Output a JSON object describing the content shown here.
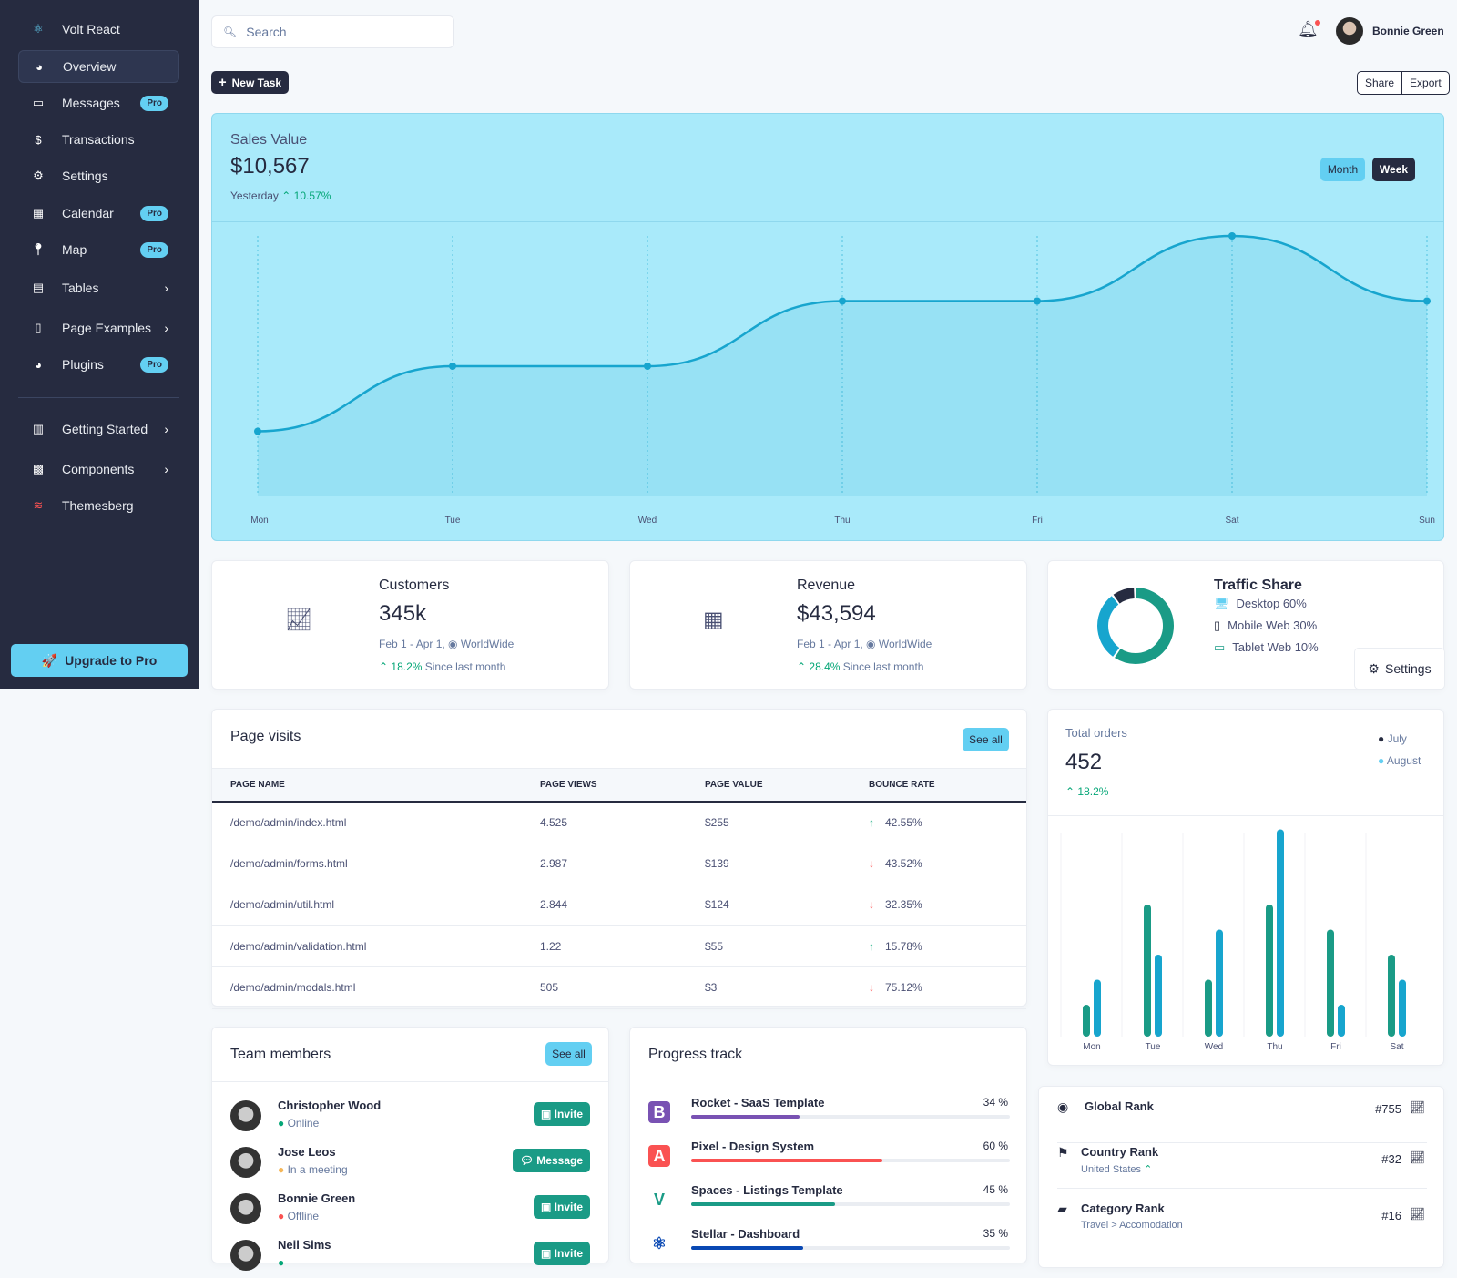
{
  "brand": "Volt React",
  "sidebar": {
    "items": [
      {
        "label": "Overview",
        "icon": "chart-pie-icon",
        "active": true
      },
      {
        "label": "Messages",
        "icon": "inbox-icon",
        "badge": "Pro"
      },
      {
        "label": "Transactions",
        "icon": "hand-holding-usd-icon"
      },
      {
        "label": "Settings",
        "icon": "cog-icon"
      },
      {
        "label": "Calendar",
        "icon": "calendar-icon",
        "badge": "Pro"
      },
      {
        "label": "Map",
        "icon": "map-pin-icon",
        "badge": "Pro"
      },
      {
        "label": "Tables",
        "icon": "table-icon",
        "chevron": true
      },
      {
        "label": "Page Examples",
        "icon": "file-icon",
        "chevron": true
      },
      {
        "label": "Plugins",
        "icon": "chart-pie-icon",
        "badge": "Pro"
      },
      {
        "label": "Getting Started",
        "icon": "book-icon",
        "chevron": true
      },
      {
        "label": "Components",
        "icon": "boxes-icon",
        "chevron": true
      },
      {
        "label": "Themesberg",
        "icon": "themesberg-logo-icon"
      }
    ],
    "upgrade": "Upgrade to Pro"
  },
  "topbar": {
    "search_placeholder": "Search",
    "user_name": "Bonnie Green"
  },
  "toolbar": {
    "new_task": "New Task",
    "share": "Share",
    "export": "Export"
  },
  "sales": {
    "title": "Sales Value",
    "value": "$10,567",
    "period": "Yesterday",
    "change": "10.57%",
    "month": "Month",
    "week": "Week"
  },
  "chart_data": [
    {
      "type": "area",
      "x": [
        "Mon",
        "Tue",
        "Wed",
        "Thu",
        "Fri",
        "Sat",
        "Sun"
      ],
      "values": [
        1,
        2,
        2,
        3,
        3,
        4,
        3
      ],
      "ylim": [
        0,
        4
      ],
      "grid": "vertical",
      "color": "#17a5ce"
    },
    {
      "type": "bar",
      "categories": [
        "Mon",
        "Tue",
        "Wed",
        "Thu",
        "Fri",
        "Sat"
      ],
      "series": [
        {
          "name": "July",
          "values": [
            1,
            5,
            2,
            5,
            4,
            3
          ],
          "color": "#1a9b86"
        },
        {
          "name": "August",
          "values": [
            2,
            3,
            4,
            8,
            1,
            2
          ],
          "color": "#17a5ce"
        }
      ],
      "legend": "top-right",
      "ylim": [
        0,
        8
      ]
    },
    {
      "type": "pie",
      "donut": true,
      "categories": [
        "Desktop",
        "Mobile Web",
        "Tablet Web"
      ],
      "values": [
        60,
        30,
        10
      ],
      "colors": [
        "#1a9b86",
        "#17a5ce",
        "#262b40"
      ]
    }
  ],
  "stats": [
    {
      "title": "Customers",
      "value": "345k",
      "range": "Feb 1 - Apr 1,",
      "region": "WorldWide",
      "change": "18.2%",
      "since": "Since last month",
      "icon": "chart-line-icon"
    },
    {
      "title": "Revenue",
      "value": "$43,594",
      "range": "Feb 1 - Apr 1,",
      "region": "WorldWide",
      "change": "28.4%",
      "since": "Since last month",
      "icon": "cash-register-icon"
    }
  ],
  "traffic": {
    "title": "Traffic Share",
    "items": [
      {
        "label": "Desktop 60%",
        "icon": "desktop-icon",
        "color": "#63cff2"
      },
      {
        "label": "Mobile Web 30%",
        "icon": "mobile-icon",
        "color": "#262b40"
      },
      {
        "label": "Tablet Web 10%",
        "icon": "tablet-icon",
        "color": "#1a9b86"
      }
    ],
    "settings": "Settings"
  },
  "page_visits": {
    "title": "Page visits",
    "see_all": "See all",
    "columns": [
      "PAGE NAME",
      "PAGE VIEWS",
      "PAGE VALUE",
      "BOUNCE RATE"
    ],
    "rows": [
      {
        "name": "/demo/admin/index.html",
        "views": "4.525",
        "value": "$255",
        "rate": "42.55%",
        "dir": "up"
      },
      {
        "name": "/demo/admin/forms.html",
        "views": "2.987",
        "value": "$139",
        "rate": "43.52%",
        "dir": "down"
      },
      {
        "name": "/demo/admin/util.html",
        "views": "2.844",
        "value": "$124",
        "rate": "32.35%",
        "dir": "down"
      },
      {
        "name": "/demo/admin/validation.html",
        "views": "1.22",
        "value": "$55",
        "rate": "15.78%",
        "dir": "up"
      },
      {
        "name": "/demo/admin/modals.html",
        "views": "505",
        "value": "$3",
        "rate": "75.12%",
        "dir": "down"
      }
    ]
  },
  "orders": {
    "title": "Total orders",
    "value": "452",
    "change": "18.2%",
    "legend": [
      "July",
      "August"
    ]
  },
  "team": {
    "title": "Team members",
    "see_all": "See all",
    "members": [
      {
        "name": "Christopher Wood",
        "status": "Online",
        "status_color": "#05a677",
        "action": "Invite"
      },
      {
        "name": "Jose Leos",
        "status": "In a meeting",
        "status_color": "#f5b759",
        "action": "Message"
      },
      {
        "name": "Bonnie Green",
        "status": "Offline",
        "status_color": "#fa5252",
        "action": "Invite"
      },
      {
        "name": "Neil Sims",
        "status": "",
        "status_color": "#05a677",
        "action": "Invite"
      }
    ]
  },
  "progress": {
    "title": "Progress track",
    "items": [
      {
        "name": "Rocket - SaaS Template",
        "pct": 34,
        "label": "34 %",
        "color": "#7952b3",
        "icon": "bootstrap-icon"
      },
      {
        "name": "Pixel - Design System",
        "pct": 60,
        "label": "60 %",
        "color": "#fa5252",
        "icon": "angular-icon"
      },
      {
        "name": "Spaces - Listings Template",
        "pct": 45,
        "label": "45 %",
        "color": "#1a9b86",
        "icon": "vue-icon"
      },
      {
        "name": "Stellar - Dashboard",
        "pct": 35,
        "label": "35 %",
        "color": "#0948b3",
        "icon": "react-icon"
      }
    ]
  },
  "ranks": [
    {
      "title": "Global Rank",
      "sub": "",
      "value": "#755",
      "icon": "globe-icon"
    },
    {
      "title": "Country Rank",
      "sub": "United States",
      "value": "#32",
      "icon": "flag-icon"
    },
    {
      "title": "Category Rank",
      "sub": "Travel > Accomodation",
      "value": "#16",
      "icon": "folder-open-icon"
    }
  ]
}
